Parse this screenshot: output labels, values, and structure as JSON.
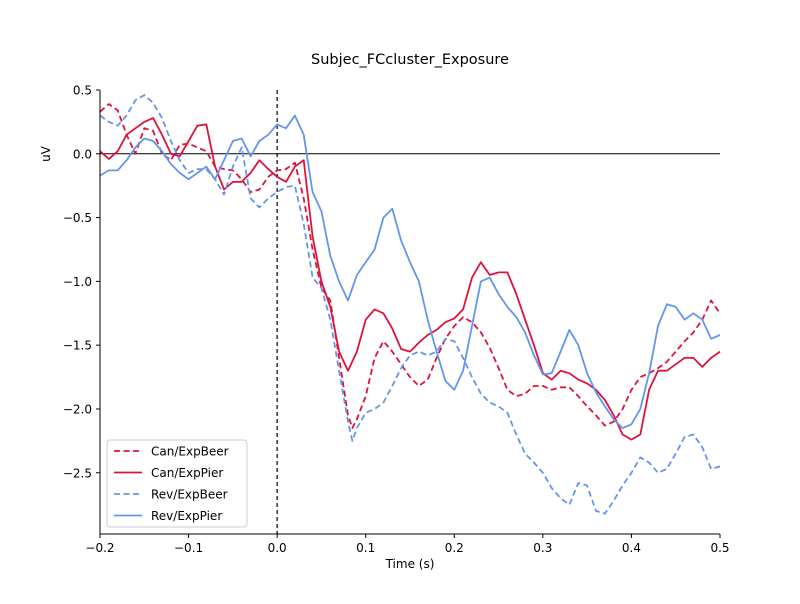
{
  "chart_data": {
    "type": "line",
    "title": "Subjec_FCcluster_Exposure",
    "xlabel": "Time (s)",
    "ylabel": "uV",
    "xlim": [
      -0.2,
      0.5
    ],
    "ylim": [
      -2.98,
      0.5
    ],
    "xticks": [
      -0.2,
      -0.1,
      0.0,
      0.1,
      0.2,
      0.3,
      0.4,
      0.5
    ],
    "xtick_labels": [
      "−0.2",
      "−0.1",
      "0.0",
      "0.1",
      "0.2",
      "0.3",
      "0.4",
      "0.5"
    ],
    "yticks": [
      0.5,
      0.0,
      -0.5,
      -1.0,
      -1.5,
      -2.0,
      -2.5
    ],
    "ytick_labels": [
      "0.5",
      "0.0",
      "−0.5",
      "−1.0",
      "−1.5",
      "−2.0",
      "−2.5"
    ],
    "hline": 0.0,
    "vline": 0.0,
    "legend_position": "lower-left",
    "colors": {
      "can": "#dc143c",
      "rev": "#6495ed"
    },
    "series": [
      {
        "name": "Can/ExpBeer",
        "color": "#dc143c",
        "dash": true,
        "points": [
          [
            -0.2,
            0.33
          ],
          [
            -0.19,
            0.39
          ],
          [
            -0.18,
            0.34
          ],
          [
            -0.17,
            0.15
          ],
          [
            -0.16,
            0.0
          ],
          [
            -0.15,
            0.2
          ],
          [
            -0.14,
            0.18
          ],
          [
            -0.13,
            0.0
          ],
          [
            -0.12,
            -0.05
          ],
          [
            -0.11,
            0.07
          ],
          [
            -0.1,
            0.08
          ],
          [
            -0.09,
            0.05
          ],
          [
            -0.08,
            0.02
          ],
          [
            -0.07,
            -0.1
          ],
          [
            -0.06,
            -0.12
          ],
          [
            -0.05,
            -0.13
          ],
          [
            -0.04,
            -0.2
          ],
          [
            -0.03,
            -0.3
          ],
          [
            -0.02,
            -0.28
          ],
          [
            -0.01,
            -0.18
          ],
          [
            0.0,
            -0.13
          ],
          [
            0.01,
            -0.12
          ],
          [
            0.02,
            -0.07
          ],
          [
            0.03,
            -0.35
          ],
          [
            0.04,
            -0.75
          ],
          [
            0.05,
            -1.05
          ],
          [
            0.06,
            -1.15
          ],
          [
            0.07,
            -1.6
          ],
          [
            0.08,
            -2.05
          ],
          [
            0.085,
            -2.15
          ],
          [
            0.09,
            -2.08
          ],
          [
            0.1,
            -1.9
          ],
          [
            0.11,
            -1.6
          ],
          [
            0.12,
            -1.47
          ],
          [
            0.13,
            -1.55
          ],
          [
            0.14,
            -1.65
          ],
          [
            0.15,
            -1.75
          ],
          [
            0.16,
            -1.82
          ],
          [
            0.17,
            -1.77
          ],
          [
            0.18,
            -1.6
          ],
          [
            0.19,
            -1.45
          ],
          [
            0.2,
            -1.35
          ],
          [
            0.21,
            -1.28
          ],
          [
            0.22,
            -1.32
          ],
          [
            0.23,
            -1.4
          ],
          [
            0.24,
            -1.52
          ],
          [
            0.25,
            -1.68
          ],
          [
            0.26,
            -1.85
          ],
          [
            0.27,
            -1.9
          ],
          [
            0.28,
            -1.88
          ],
          [
            0.29,
            -1.82
          ],
          [
            0.3,
            -1.82
          ],
          [
            0.31,
            -1.85
          ],
          [
            0.32,
            -1.83
          ],
          [
            0.33,
            -1.83
          ],
          [
            0.34,
            -1.9
          ],
          [
            0.35,
            -1.98
          ],
          [
            0.36,
            -2.05
          ],
          [
            0.37,
            -2.13
          ],
          [
            0.38,
            -2.1
          ],
          [
            0.39,
            -2.0
          ],
          [
            0.4,
            -1.85
          ],
          [
            0.41,
            -1.75
          ],
          [
            0.42,
            -1.72
          ],
          [
            0.43,
            -1.68
          ],
          [
            0.44,
            -1.63
          ],
          [
            0.45,
            -1.55
          ],
          [
            0.46,
            -1.47
          ],
          [
            0.47,
            -1.4
          ],
          [
            0.48,
            -1.3
          ],
          [
            0.49,
            -1.15
          ],
          [
            0.5,
            -1.25
          ]
        ]
      },
      {
        "name": "Can/ExpPier",
        "color": "#dc143c",
        "dash": false,
        "points": [
          [
            -0.2,
            0.02
          ],
          [
            -0.19,
            -0.04
          ],
          [
            -0.18,
            0.02
          ],
          [
            -0.17,
            0.15
          ],
          [
            -0.16,
            0.2
          ],
          [
            -0.15,
            0.25
          ],
          [
            -0.14,
            0.28
          ],
          [
            -0.13,
            0.15
          ],
          [
            -0.12,
            0.0
          ],
          [
            -0.11,
            -0.02
          ],
          [
            -0.1,
            0.1
          ],
          [
            -0.09,
            0.22
          ],
          [
            -0.08,
            0.23
          ],
          [
            -0.07,
            -0.1
          ],
          [
            -0.06,
            -0.28
          ],
          [
            -0.05,
            -0.22
          ],
          [
            -0.04,
            -0.22
          ],
          [
            -0.03,
            -0.15
          ],
          [
            -0.02,
            -0.05
          ],
          [
            -0.01,
            -0.12
          ],
          [
            0.0,
            -0.18
          ],
          [
            0.01,
            -0.22
          ],
          [
            0.02,
            -0.1
          ],
          [
            0.03,
            -0.05
          ],
          [
            0.04,
            -0.65
          ],
          [
            0.05,
            -1.0
          ],
          [
            0.06,
            -1.2
          ],
          [
            0.07,
            -1.55
          ],
          [
            0.08,
            -1.7
          ],
          [
            0.09,
            -1.55
          ],
          [
            0.1,
            -1.3
          ],
          [
            0.11,
            -1.22
          ],
          [
            0.12,
            -1.25
          ],
          [
            0.13,
            -1.37
          ],
          [
            0.14,
            -1.53
          ],
          [
            0.15,
            -1.55
          ],
          [
            0.16,
            -1.48
          ],
          [
            0.17,
            -1.42
          ],
          [
            0.18,
            -1.38
          ],
          [
            0.19,
            -1.32
          ],
          [
            0.2,
            -1.29
          ],
          [
            0.21,
            -1.22
          ],
          [
            0.22,
            -0.97
          ],
          [
            0.23,
            -0.85
          ],
          [
            0.24,
            -0.95
          ],
          [
            0.25,
            -0.93
          ],
          [
            0.26,
            -0.93
          ],
          [
            0.27,
            -1.1
          ],
          [
            0.28,
            -1.3
          ],
          [
            0.29,
            -1.5
          ],
          [
            0.3,
            -1.72
          ],
          [
            0.31,
            -1.77
          ],
          [
            0.32,
            -1.7
          ],
          [
            0.33,
            -1.72
          ],
          [
            0.34,
            -1.77
          ],
          [
            0.35,
            -1.8
          ],
          [
            0.36,
            -1.85
          ],
          [
            0.37,
            -1.93
          ],
          [
            0.38,
            -2.05
          ],
          [
            0.39,
            -2.2
          ],
          [
            0.4,
            -2.24
          ],
          [
            0.41,
            -2.2
          ],
          [
            0.42,
            -1.85
          ],
          [
            0.43,
            -1.7
          ],
          [
            0.44,
            -1.7
          ],
          [
            0.45,
            -1.65
          ],
          [
            0.46,
            -1.6
          ],
          [
            0.47,
            -1.6
          ],
          [
            0.48,
            -1.67
          ],
          [
            0.49,
            -1.6
          ],
          [
            0.5,
            -1.55
          ]
        ]
      },
      {
        "name": "Rev/ExpBeer",
        "color": "#6495ed",
        "dash": true,
        "points": [
          [
            -0.2,
            0.3
          ],
          [
            -0.19,
            0.25
          ],
          [
            -0.18,
            0.22
          ],
          [
            -0.17,
            0.3
          ],
          [
            -0.16,
            0.42
          ],
          [
            -0.15,
            0.46
          ],
          [
            -0.14,
            0.4
          ],
          [
            -0.13,
            0.28
          ],
          [
            -0.12,
            0.1
          ],
          [
            -0.11,
            -0.05
          ],
          [
            -0.1,
            -0.15
          ],
          [
            -0.09,
            -0.12
          ],
          [
            -0.08,
            -0.12
          ],
          [
            -0.07,
            -0.2
          ],
          [
            -0.06,
            -0.32
          ],
          [
            -0.05,
            -0.1
          ],
          [
            -0.04,
            0.05
          ],
          [
            -0.03,
            -0.35
          ],
          [
            -0.02,
            -0.42
          ],
          [
            -0.01,
            -0.35
          ],
          [
            0.0,
            -0.3
          ],
          [
            0.01,
            -0.26
          ],
          [
            0.02,
            -0.25
          ],
          [
            0.03,
            -0.55
          ],
          [
            0.04,
            -0.97
          ],
          [
            0.05,
            -1.05
          ],
          [
            0.06,
            -1.3
          ],
          [
            0.07,
            -1.7
          ],
          [
            0.08,
            -2.1
          ],
          [
            0.085,
            -2.25
          ],
          [
            0.09,
            -2.15
          ],
          [
            0.1,
            -2.03
          ],
          [
            0.11,
            -2.0
          ],
          [
            0.12,
            -1.95
          ],
          [
            0.13,
            -1.82
          ],
          [
            0.14,
            -1.68
          ],
          [
            0.15,
            -1.58
          ],
          [
            0.16,
            -1.55
          ],
          [
            0.17,
            -1.58
          ],
          [
            0.18,
            -1.55
          ],
          [
            0.19,
            -1.45
          ],
          [
            0.2,
            -1.47
          ],
          [
            0.21,
            -1.6
          ],
          [
            0.22,
            -1.75
          ],
          [
            0.23,
            -1.88
          ],
          [
            0.24,
            -1.95
          ],
          [
            0.25,
            -1.98
          ],
          [
            0.26,
            -2.03
          ],
          [
            0.27,
            -2.2
          ],
          [
            0.28,
            -2.35
          ],
          [
            0.29,
            -2.42
          ],
          [
            0.3,
            -2.5
          ],
          [
            0.31,
            -2.62
          ],
          [
            0.32,
            -2.7
          ],
          [
            0.33,
            -2.75
          ],
          [
            0.34,
            -2.58
          ],
          [
            0.35,
            -2.6
          ],
          [
            0.36,
            -2.8
          ],
          [
            0.37,
            -2.82
          ],
          [
            0.38,
            -2.72
          ],
          [
            0.39,
            -2.6
          ],
          [
            0.4,
            -2.5
          ],
          [
            0.41,
            -2.38
          ],
          [
            0.42,
            -2.42
          ],
          [
            0.43,
            -2.5
          ],
          [
            0.44,
            -2.47
          ],
          [
            0.45,
            -2.35
          ],
          [
            0.46,
            -2.22
          ],
          [
            0.47,
            -2.2
          ],
          [
            0.48,
            -2.3
          ],
          [
            0.49,
            -2.47
          ],
          [
            0.5,
            -2.45
          ]
        ]
      },
      {
        "name": "Rev/ExpPier",
        "color": "#6495ed",
        "dash": false,
        "points": [
          [
            -0.2,
            -0.17
          ],
          [
            -0.19,
            -0.13
          ],
          [
            -0.18,
            -0.13
          ],
          [
            -0.17,
            -0.05
          ],
          [
            -0.16,
            0.05
          ],
          [
            -0.15,
            0.12
          ],
          [
            -0.14,
            0.1
          ],
          [
            -0.13,
            0.02
          ],
          [
            -0.12,
            -0.08
          ],
          [
            -0.11,
            -0.15
          ],
          [
            -0.1,
            -0.2
          ],
          [
            -0.09,
            -0.15
          ],
          [
            -0.08,
            -0.1
          ],
          [
            -0.07,
            -0.2
          ],
          [
            -0.06,
            -0.05
          ],
          [
            -0.05,
            0.1
          ],
          [
            -0.04,
            0.12
          ],
          [
            -0.03,
            -0.02
          ],
          [
            -0.02,
            0.1
          ],
          [
            -0.01,
            0.15
          ],
          [
            0.0,
            0.23
          ],
          [
            0.01,
            0.2
          ],
          [
            0.02,
            0.3
          ],
          [
            0.03,
            0.15
          ],
          [
            0.04,
            -0.3
          ],
          [
            0.05,
            -0.45
          ],
          [
            0.06,
            -0.8
          ],
          [
            0.07,
            -1.0
          ],
          [
            0.08,
            -1.15
          ],
          [
            0.085,
            -1.05
          ],
          [
            0.09,
            -0.95
          ],
          [
            0.1,
            -0.85
          ],
          [
            0.11,
            -0.75
          ],
          [
            0.12,
            -0.5
          ],
          [
            0.13,
            -0.43
          ],
          [
            0.14,
            -0.68
          ],
          [
            0.15,
            -0.85
          ],
          [
            0.16,
            -1.0
          ],
          [
            0.17,
            -1.3
          ],
          [
            0.18,
            -1.55
          ],
          [
            0.19,
            -1.78
          ],
          [
            0.2,
            -1.85
          ],
          [
            0.21,
            -1.7
          ],
          [
            0.22,
            -1.35
          ],
          [
            0.23,
            -1.0
          ],
          [
            0.24,
            -0.97
          ],
          [
            0.25,
            -1.1
          ],
          [
            0.26,
            -1.2
          ],
          [
            0.27,
            -1.28
          ],
          [
            0.28,
            -1.4
          ],
          [
            0.29,
            -1.58
          ],
          [
            0.3,
            -1.73
          ],
          [
            0.31,
            -1.72
          ],
          [
            0.32,
            -1.55
          ],
          [
            0.33,
            -1.38
          ],
          [
            0.34,
            -1.5
          ],
          [
            0.35,
            -1.72
          ],
          [
            0.36,
            -1.87
          ],
          [
            0.37,
            -1.98
          ],
          [
            0.38,
            -2.08
          ],
          [
            0.39,
            -2.15
          ],
          [
            0.4,
            -2.12
          ],
          [
            0.41,
            -2.0
          ],
          [
            0.42,
            -1.72
          ],
          [
            0.43,
            -1.35
          ],
          [
            0.44,
            -1.18
          ],
          [
            0.45,
            -1.2
          ],
          [
            0.46,
            -1.3
          ],
          [
            0.47,
            -1.25
          ],
          [
            0.48,
            -1.3
          ],
          [
            0.49,
            -1.45
          ],
          [
            0.5,
            -1.42
          ]
        ]
      }
    ]
  }
}
